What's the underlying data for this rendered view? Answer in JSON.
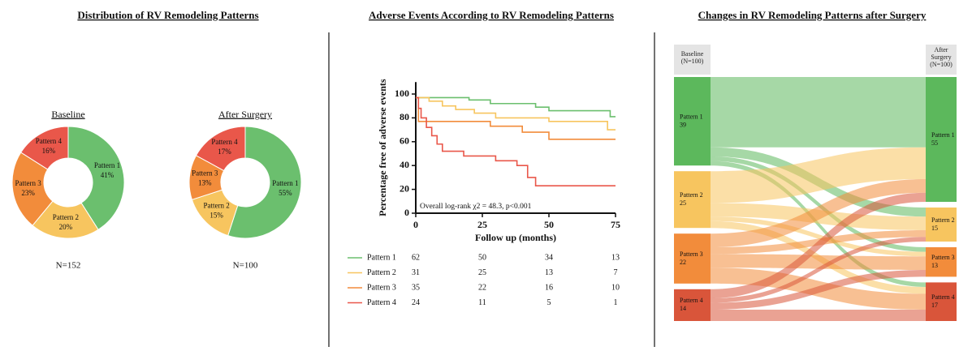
{
  "chart_data": [
    {
      "type": "pie",
      "title": "Distribution of RV Remodeling Patterns",
      "subtitle": "Baseline",
      "note": "N=152",
      "categories": [
        "Pattern 1",
        "Pattern 2",
        "Pattern 3",
        "Pattern 4"
      ],
      "values": [
        41,
        20,
        23,
        16
      ],
      "value_labels": [
        "41%",
        "20%",
        "23%",
        "16%"
      ],
      "colors": [
        "#6bbf6e",
        "#f7c55f",
        "#f28c3b",
        "#e9574a"
      ]
    },
    {
      "type": "pie",
      "subtitle": "After Surgery",
      "note": "N=100",
      "categories": [
        "Pattern 1",
        "Pattern 2",
        "Pattern 3",
        "Pattern 4"
      ],
      "values": [
        55,
        15,
        13,
        17
      ],
      "value_labels": [
        "55%",
        "15%",
        "13%",
        "17%"
      ],
      "colors": [
        "#6bbf6e",
        "#f7c55f",
        "#f28c3b",
        "#e9574a"
      ]
    },
    {
      "type": "line",
      "title": "Adverse Events According to RV Remodeling Patterns",
      "xlabel": "Follow up (months)",
      "ylabel": "Percentage free of adverse events",
      "annotation": "Overall log-rank χ2 = 48.3, p<0.001",
      "xlim": [
        0,
        75
      ],
      "ylim": [
        0,
        110
      ],
      "xticks": [
        0,
        25,
        50,
        75
      ],
      "yticks": [
        0,
        20,
        40,
        60,
        80,
        100
      ],
      "series": [
        {
          "name": "Pattern 1",
          "color": "#6bbf6e",
          "x": [
            0,
            20,
            20,
            28,
            28,
            45,
            45,
            50,
            50,
            73,
            73,
            75
          ],
          "values": [
            97,
            97,
            95,
            95,
            92,
            92,
            89,
            89,
            86,
            86,
            81,
            81
          ]
        },
        {
          "name": "Pattern 2",
          "color": "#f7c55f",
          "x": [
            0,
            5,
            5,
            10,
            10,
            15,
            15,
            22,
            22,
            30,
            30,
            50,
            50,
            72,
            72,
            75
          ],
          "values": [
            97,
            97,
            94,
            94,
            90,
            90,
            87,
            87,
            84,
            84,
            80,
            80,
            77,
            77,
            70,
            70
          ]
        },
        {
          "name": "Pattern 3",
          "color": "#f28c3b",
          "x": [
            0,
            1,
            1,
            28,
            28,
            40,
            40,
            50,
            50,
            75
          ],
          "values": [
            97,
            97,
            77,
            77,
            73,
            73,
            68,
            68,
            62,
            62
          ]
        },
        {
          "name": "Pattern 4",
          "color": "#e9574a",
          "x": [
            0,
            1,
            1,
            2,
            2,
            4,
            4,
            6,
            6,
            8,
            8,
            10,
            10,
            18,
            18,
            30,
            30,
            38,
            38,
            42,
            42,
            45,
            45,
            75
          ],
          "values": [
            97,
            97,
            88,
            88,
            80,
            80,
            72,
            72,
            65,
            65,
            58,
            58,
            52,
            52,
            48,
            48,
            44,
            44,
            40,
            40,
            30,
            30,
            23,
            23
          ]
        }
      ],
      "risk_table": [
        [
          62,
          50,
          34,
          13
        ],
        [
          31,
          25,
          13,
          7
        ],
        [
          35,
          22,
          16,
          10
        ],
        [
          24,
          11,
          5,
          1
        ]
      ]
    },
    {
      "type": "sankey",
      "title": "Changes in RV Remodeling Patterns after Surgery",
      "left_header": "Baseline (N=100)",
      "right_header": "After Surgery (N=100)",
      "categories": [
        "Pattern 1",
        "Pattern 2",
        "Pattern 3",
        "Pattern 4"
      ],
      "baseline": [
        39,
        25,
        22,
        14
      ],
      "after": [
        55,
        15,
        13,
        17
      ],
      "transitions": [
        [
          31,
          4,
          2,
          2
        ],
        [
          14,
          6,
          2,
          3
        ],
        [
          6,
          3,
          6,
          7
        ],
        [
          4,
          2,
          3,
          5
        ]
      ],
      "colors": [
        "#5cb85c",
        "#f7c55f",
        "#f28c3b",
        "#d9553a"
      ]
    }
  ]
}
